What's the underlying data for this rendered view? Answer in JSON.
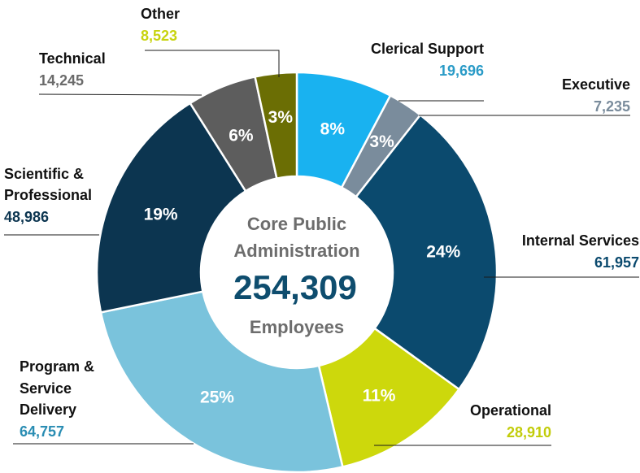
{
  "chart_data": {
    "type": "pie",
    "style": "donut",
    "center": {
      "line1": "Core Public",
      "line2": "Administration",
      "total": "254,309",
      "line3": "Employees"
    },
    "slices": [
      {
        "name": "Clerical Support",
        "value": 19696,
        "value_label": "19,696",
        "percent_label": "8%",
        "color": "#19b2f0",
        "value_color": "#2a9bc7"
      },
      {
        "name": "Executive",
        "value": 7235,
        "value_label": "7,235",
        "percent_label": "3%",
        "color": "#7a8c9c",
        "value_color": "#7a8c9c"
      },
      {
        "name": "Internal Services",
        "value": 61957,
        "value_label": "61,957",
        "percent_label": "24%",
        "color": "#0b4a6e",
        "value_color": "#0b4a6e"
      },
      {
        "name": "Operational",
        "value": 28910,
        "value_label": "28,910",
        "percent_label": "11%",
        "color": "#cdd80c",
        "value_color": "#c2cc0a"
      },
      {
        "name": "Program & Service Delivery",
        "value": 64757,
        "value_label": "64,757",
        "percent_label": "25%",
        "color": "#7ac3dc",
        "value_color": "#2a8db3"
      },
      {
        "name": "Scientific & Professional",
        "value": 48986,
        "value_label": "48,986",
        "percent_label": "19%",
        "color": "#0c3550",
        "value_color": "#0c3550"
      },
      {
        "name": "Technical",
        "value": 14245,
        "value_label": "14,245",
        "percent_label": "6%",
        "color": "#5d5d5d",
        "value_color": "#6b6b6b"
      },
      {
        "name": "Other",
        "value": 8523,
        "value_label": "8,523",
        "percent_label": "3%",
        "color": "#6b6e04",
        "value_color": "#c8d30e"
      }
    ]
  }
}
